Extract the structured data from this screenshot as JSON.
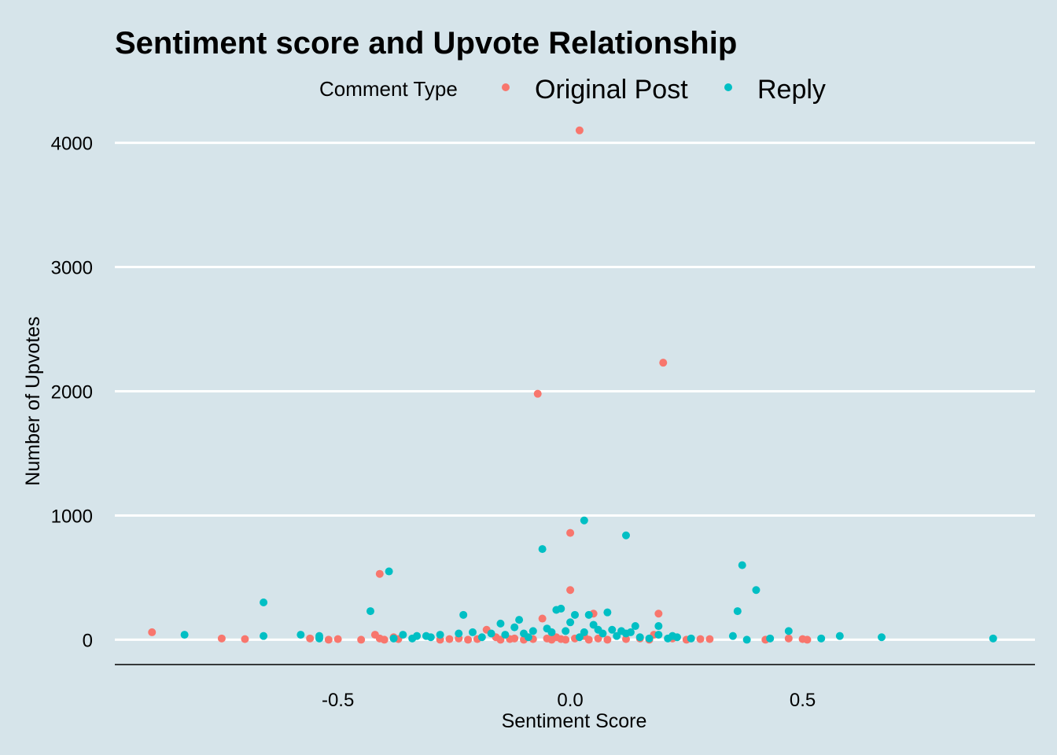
{
  "chart_data": {
    "type": "scatter",
    "title": "Sentiment score and Upvote Relationship",
    "xlabel": "Sentiment Score",
    "ylabel": "Number of Upvotes",
    "xlim": [
      -0.98,
      1.0
    ],
    "ylim": [
      -200,
      4200
    ],
    "xticks": [
      -0.5,
      0.0,
      0.5
    ],
    "xtick_labels": [
      "-0.5",
      "0.0",
      "0.5"
    ],
    "yticks": [
      0,
      1000,
      2000,
      3000,
      4000
    ],
    "ytick_labels": [
      "0",
      "1000",
      "2000",
      "3000",
      "4000"
    ],
    "grid": "horizontal-major",
    "legend": {
      "title": "Comment Type",
      "position": "top"
    },
    "series": [
      {
        "name": "Original Post",
        "color": "#f8766d",
        "points": [
          [
            -0.9,
            60
          ],
          [
            -0.75,
            10
          ],
          [
            -0.7,
            5
          ],
          [
            -0.56,
            10
          ],
          [
            -0.52,
            0
          ],
          [
            -0.5,
            5
          ],
          [
            -0.45,
            0
          ],
          [
            -0.42,
            40
          ],
          [
            -0.41,
            10
          ],
          [
            -0.4,
            0
          ],
          [
            -0.41,
            530
          ],
          [
            -0.38,
            20
          ],
          [
            -0.37,
            5
          ],
          [
            -0.28,
            0
          ],
          [
            -0.26,
            5
          ],
          [
            -0.24,
            10
          ],
          [
            -0.22,
            0
          ],
          [
            -0.2,
            5
          ],
          [
            -0.18,
            80
          ],
          [
            -0.16,
            20
          ],
          [
            -0.15,
            0
          ],
          [
            -0.13,
            5
          ],
          [
            -0.12,
            10
          ],
          [
            -0.1,
            0
          ],
          [
            -0.08,
            5
          ],
          [
            -0.07,
            1980
          ],
          [
            -0.06,
            170
          ],
          [
            -0.05,
            10
          ],
          [
            -0.04,
            0
          ],
          [
            -0.03,
            20
          ],
          [
            -0.02,
            5
          ],
          [
            -0.01,
            0
          ],
          [
            0.0,
            400
          ],
          [
            0.0,
            860
          ],
          [
            0.01,
            10
          ],
          [
            0.02,
            4100
          ],
          [
            0.03,
            30
          ],
          [
            0.04,
            0
          ],
          [
            0.05,
            210
          ],
          [
            0.06,
            10
          ],
          [
            0.08,
            0
          ],
          [
            0.12,
            5
          ],
          [
            0.15,
            10
          ],
          [
            0.17,
            0
          ],
          [
            0.18,
            40
          ],
          [
            0.19,
            210
          ],
          [
            0.2,
            2230
          ],
          [
            0.22,
            10
          ],
          [
            0.25,
            0
          ],
          [
            0.28,
            5
          ],
          [
            0.3,
            5
          ],
          [
            0.42,
            0
          ],
          [
            0.47,
            10
          ],
          [
            0.5,
            5
          ],
          [
            0.51,
            0
          ]
        ]
      },
      {
        "name": "Reply",
        "color": "#00bfc4",
        "points": [
          [
            -0.83,
            40
          ],
          [
            -0.66,
            300
          ],
          [
            -0.66,
            30
          ],
          [
            -0.58,
            40
          ],
          [
            -0.54,
            30
          ],
          [
            -0.54,
            10
          ],
          [
            -0.43,
            230
          ],
          [
            -0.39,
            550
          ],
          [
            -0.38,
            10
          ],
          [
            -0.36,
            40
          ],
          [
            -0.34,
            10
          ],
          [
            -0.33,
            30
          ],
          [
            -0.31,
            30
          ],
          [
            -0.3,
            20
          ],
          [
            -0.28,
            40
          ],
          [
            -0.23,
            200
          ],
          [
            -0.24,
            50
          ],
          [
            -0.21,
            60
          ],
          [
            -0.19,
            20
          ],
          [
            -0.17,
            50
          ],
          [
            -0.15,
            130
          ],
          [
            -0.14,
            40
          ],
          [
            -0.12,
            100
          ],
          [
            -0.11,
            160
          ],
          [
            -0.1,
            50
          ],
          [
            -0.09,
            20
          ],
          [
            -0.08,
            70
          ],
          [
            -0.06,
            730
          ],
          [
            -0.05,
            90
          ],
          [
            -0.04,
            60
          ],
          [
            -0.03,
            240
          ],
          [
            -0.02,
            250
          ],
          [
            -0.01,
            70
          ],
          [
            0.0,
            140
          ],
          [
            0.01,
            200
          ],
          [
            0.02,
            20
          ],
          [
            0.03,
            960
          ],
          [
            0.03,
            60
          ],
          [
            0.04,
            200
          ],
          [
            0.05,
            120
          ],
          [
            0.06,
            80
          ],
          [
            0.07,
            50
          ],
          [
            0.08,
            220
          ],
          [
            0.09,
            80
          ],
          [
            0.1,
            30
          ],
          [
            0.11,
            70
          ],
          [
            0.12,
            840
          ],
          [
            0.12,
            50
          ],
          [
            0.13,
            60
          ],
          [
            0.14,
            110
          ],
          [
            0.15,
            20
          ],
          [
            0.17,
            10
          ],
          [
            0.19,
            40
          ],
          [
            0.19,
            110
          ],
          [
            0.21,
            10
          ],
          [
            0.22,
            30
          ],
          [
            0.23,
            20
          ],
          [
            0.26,
            10
          ],
          [
            0.35,
            30
          ],
          [
            0.36,
            230
          ],
          [
            0.37,
            600
          ],
          [
            0.38,
            0
          ],
          [
            0.4,
            400
          ],
          [
            0.43,
            10
          ],
          [
            0.47,
            70
          ],
          [
            0.54,
            10
          ],
          [
            0.58,
            30
          ],
          [
            0.67,
            20
          ],
          [
            0.91,
            10
          ]
        ]
      }
    ]
  }
}
